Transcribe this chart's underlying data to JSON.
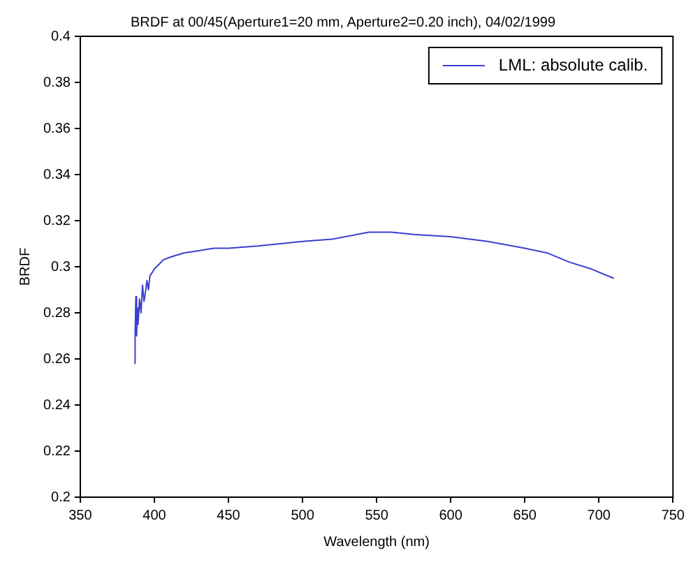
{
  "chart_data": {
    "type": "line",
    "title": "BRDF at 00/45(Aperture1=20 mm, Aperture2=0.20 inch), 04/02/1999",
    "xlabel": "Wavelength (nm)",
    "ylabel": "BRDF",
    "xlim": [
      350,
      750
    ],
    "xticks": [
      350,
      400,
      450,
      500,
      550,
      600,
      650,
      700,
      750
    ],
    "ylim": [
      0.2,
      0.4
    ],
    "yticks": [
      0.2,
      0.22,
      0.24,
      0.26,
      0.28,
      0.3,
      0.32,
      0.34,
      0.36,
      0.38,
      0.4
    ],
    "grid": false,
    "legend": "top right",
    "marker": "none",
    "line_style": "solid",
    "x": [
      386.5,
      387,
      387.5,
      388,
      388.5,
      389,
      390,
      391,
      392,
      393,
      394,
      395,
      396,
      397,
      398,
      400,
      403,
      406,
      410,
      415,
      420,
      430,
      440,
      450,
      470,
      500,
      520,
      545,
      560,
      575,
      600,
      625,
      650,
      665,
      680,
      695,
      710
    ],
    "series": [
      {
        "name": "LML: absolute calib.",
        "color": "#3b3fd0",
        "values": [
          0.258,
          0.27,
          0.287,
          0.27,
          0.282,
          0.275,
          0.286,
          0.28,
          0.292,
          0.285,
          0.289,
          0.294,
          0.29,
          0.296,
          0.297,
          0.299,
          0.301,
          0.303,
          0.304,
          0.305,
          0.306,
          0.307,
          0.308,
          0.308,
          0.309,
          0.311,
          0.312,
          0.315,
          0.315,
          0.314,
          0.313,
          0.311,
          0.308,
          0.306,
          0.302,
          0.299,
          0.295
        ]
      }
    ]
  }
}
